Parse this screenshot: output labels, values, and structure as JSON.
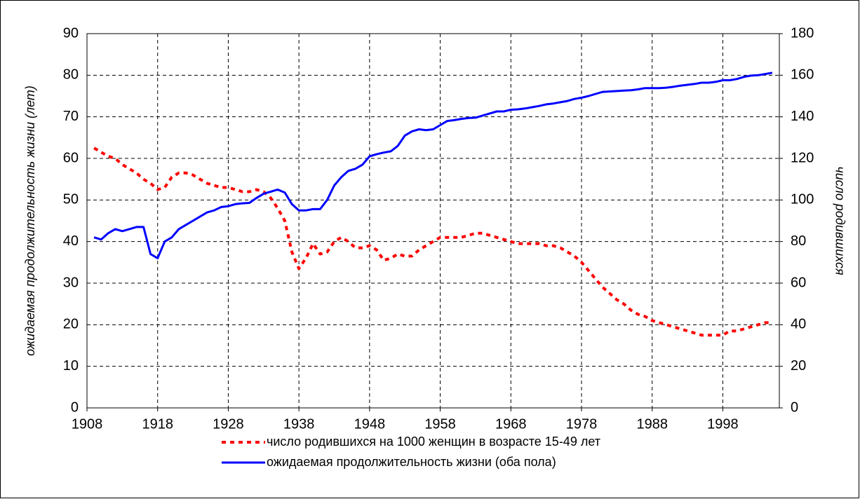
{
  "chart_data": {
    "type": "line",
    "ylabel": "ожидаемая продолжительность жизни (лет)",
    "y2label": "число родившихся",
    "x": [
      1909,
      1910,
      1911,
      1912,
      1913,
      1914,
      1915,
      1916,
      1917,
      1918,
      1919,
      1920,
      1921,
      1922,
      1923,
      1924,
      1925,
      1926,
      1927,
      1928,
      1929,
      1930,
      1931,
      1932,
      1933,
      1934,
      1935,
      1936,
      1937,
      1938,
      1939,
      1940,
      1941,
      1942,
      1943,
      1944,
      1945,
      1946,
      1947,
      1948,
      1949,
      1950,
      1951,
      1952,
      1953,
      1954,
      1955,
      1956,
      1957,
      1958,
      1959,
      1960,
      1961,
      1962,
      1963,
      1964,
      1965,
      1966,
      1967,
      1968,
      1969,
      1970,
      1971,
      1972,
      1973,
      1974,
      1975,
      1976,
      1977,
      1978,
      1979,
      1980,
      1981,
      1982,
      1983,
      1984,
      1985,
      1986,
      1987,
      1988,
      1989,
      1990,
      1991,
      1992,
      1993,
      1994,
      1995,
      1996,
      1997,
      1998,
      1999,
      2000,
      2001,
      2002,
      2003,
      2004,
      2005
    ],
    "series": [
      {
        "name": "число родившихся на 1000 женщин в возрасте 15-49 лет",
        "color": "#ff0000",
        "style": "dashed",
        "axis": "y2",
        "values": [
          125,
          123,
          121,
          120,
          117,
          115,
          113,
          110,
          108,
          105,
          106,
          111,
          113,
          113,
          112,
          110,
          108,
          107,
          106,
          106,
          105,
          104,
          104,
          105,
          104,
          101,
          96,
          90,
          75,
          67,
          72,
          79,
          74,
          75,
          80,
          82,
          80,
          77,
          77,
          78,
          76,
          71,
          72,
          74,
          73,
          73,
          76,
          78,
          80,
          82,
          82,
          82,
          82,
          83,
          84,
          84,
          83,
          82,
          81,
          80,
          79,
          79,
          79,
          79,
          78,
          78,
          77,
          75,
          73,
          70,
          66,
          62,
          58,
          55,
          52,
          50,
          47,
          45,
          44,
          42,
          41,
          40,
          39,
          38,
          37,
          36,
          35,
          35,
          35,
          35,
          37,
          37,
          38,
          39,
          40,
          41,
          41
        ]
      },
      {
        "name": "ожидаемая продолжительность жизни (оба пола)",
        "color": "#0000ff",
        "style": "solid",
        "values": [
          41,
          40.5,
          42,
          43,
          42.5,
          43,
          43.5,
          43.5,
          37,
          36,
          40,
          41,
          43,
          44,
          45,
          46,
          47,
          47.5,
          48.3,
          48.5,
          49,
          49.2,
          49.3,
          50.5,
          51.5,
          52,
          52.5,
          51.8,
          49,
          47.5,
          47.5,
          47.8,
          47.8,
          50,
          53.5,
          55.5,
          57,
          57.5,
          58.5,
          60.5,
          61,
          61.4,
          61.7,
          63,
          65.5,
          66.5,
          67,
          66.8,
          67,
          68,
          69,
          69.2,
          69.5,
          69.7,
          69.8,
          70.3,
          70.8,
          71.3,
          71.3,
          71.7,
          71.8,
          72,
          72.3,
          72.6,
          73,
          73.2,
          73.5,
          73.8,
          74.3,
          74.6,
          75,
          75.5,
          76,
          76.1,
          76.2,
          76.3,
          76.4,
          76.6,
          76.9,
          76.9,
          76.9,
          77,
          77.2,
          77.5,
          77.7,
          77.9,
          78.2,
          78.2,
          78.4,
          78.8,
          78.8,
          79.1,
          79.6,
          79.9,
          80,
          80.3,
          80.6
        ]
      }
    ],
    "xlim": [
      1908,
      2006
    ],
    "xticks": [
      1908,
      1918,
      1928,
      1938,
      1948,
      1958,
      1968,
      1978,
      1988,
      1998
    ],
    "ylim": [
      0,
      90
    ],
    "yticks": [
      0,
      10,
      20,
      30,
      40,
      50,
      60,
      70,
      80,
      90
    ],
    "y2lim": [
      0,
      180
    ],
    "y2ticks": [
      0,
      20,
      40,
      60,
      80,
      100,
      120,
      140,
      160,
      180
    ],
    "grid": true,
    "legend": "bottom"
  }
}
